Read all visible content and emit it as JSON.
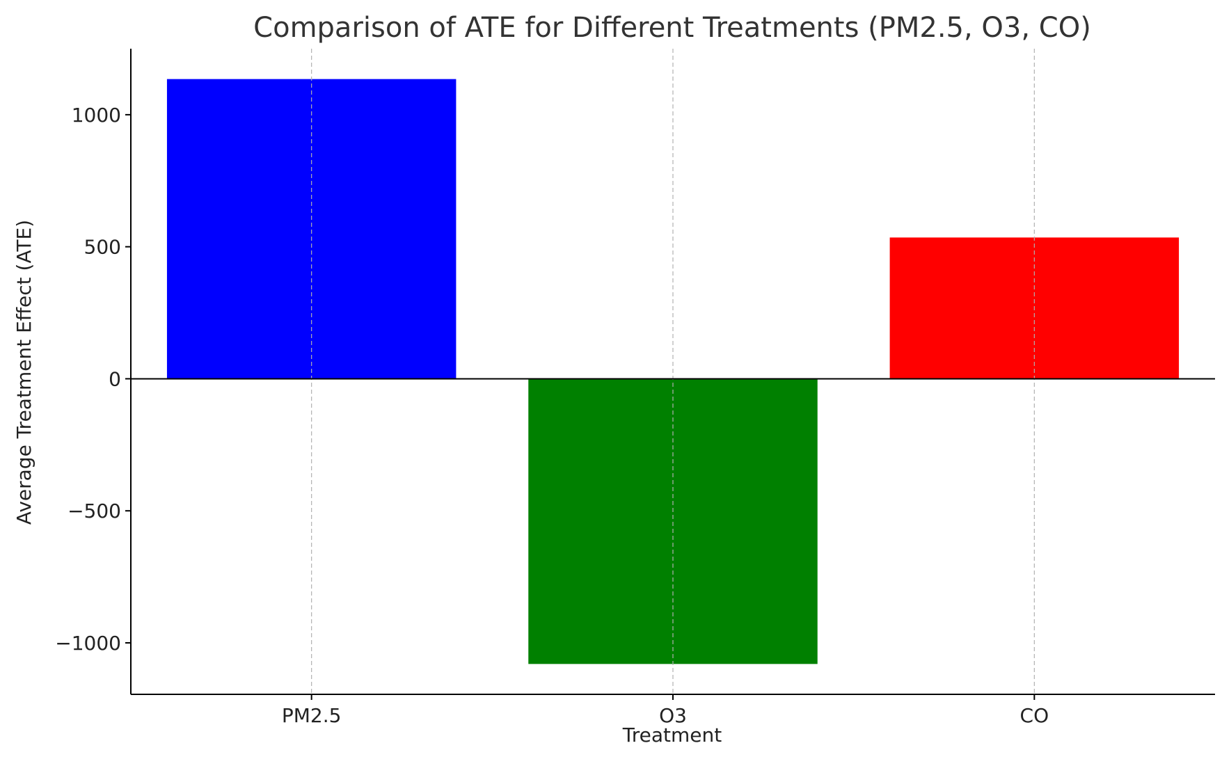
{
  "chart_data": {
    "type": "bar",
    "title": "Comparison of ATE for Different Treatments (PM2.5, O3, CO)",
    "xlabel": "Treatment",
    "ylabel": "Average Treatment Effect (ATE)",
    "categories": [
      "PM2.5",
      "O3",
      "CO"
    ],
    "values": [
      1135,
      -1080,
      535
    ],
    "colors": [
      "#0000ff",
      "#008000",
      "#ff0000"
    ],
    "ylim": [
      -1195,
      1250
    ],
    "yticks": [
      -1000,
      -500,
      0,
      500,
      1000
    ],
    "ytick_labels": [
      "−1000",
      "−500",
      "0",
      "500",
      "1000"
    ],
    "grid": "x-dashed",
    "zero_line": true
  }
}
